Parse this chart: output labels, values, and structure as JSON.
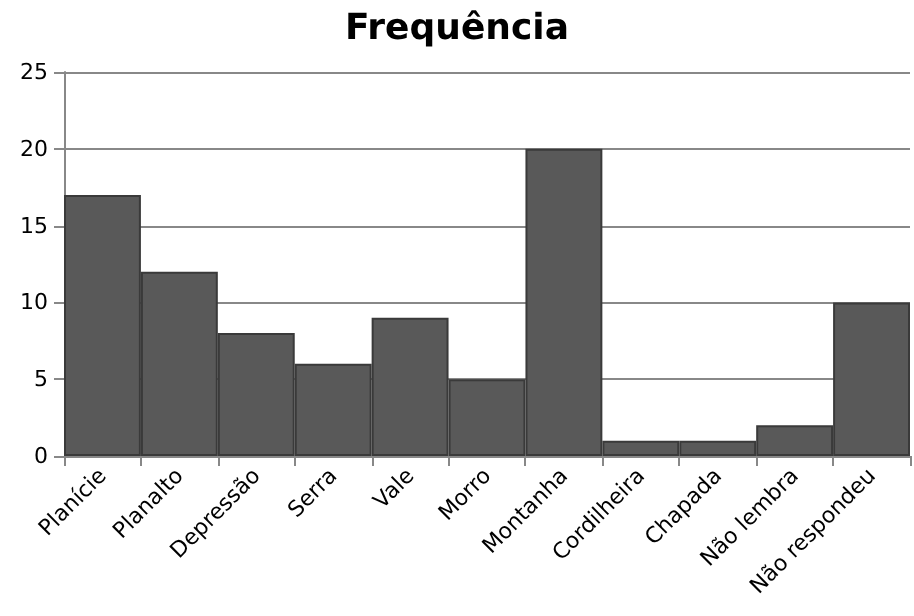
{
  "chart_data": {
    "type": "bar",
    "title": "Frequência",
    "categories": [
      "Planície",
      "Planalto",
      "Depressão",
      "Serra",
      "Vale",
      "Morro",
      "Montanha",
      "Cordilheira",
      "Chapada",
      "Não lembra",
      "Não respondeu"
    ],
    "values": [
      17,
      12,
      8,
      6,
      9,
      5,
      20,
      1,
      1,
      2,
      10
    ],
    "color": "#595959",
    "ylim": [
      0,
      25
    ],
    "yticks": [
      0,
      5,
      10,
      15,
      20,
      25
    ],
    "grid": "y"
  }
}
